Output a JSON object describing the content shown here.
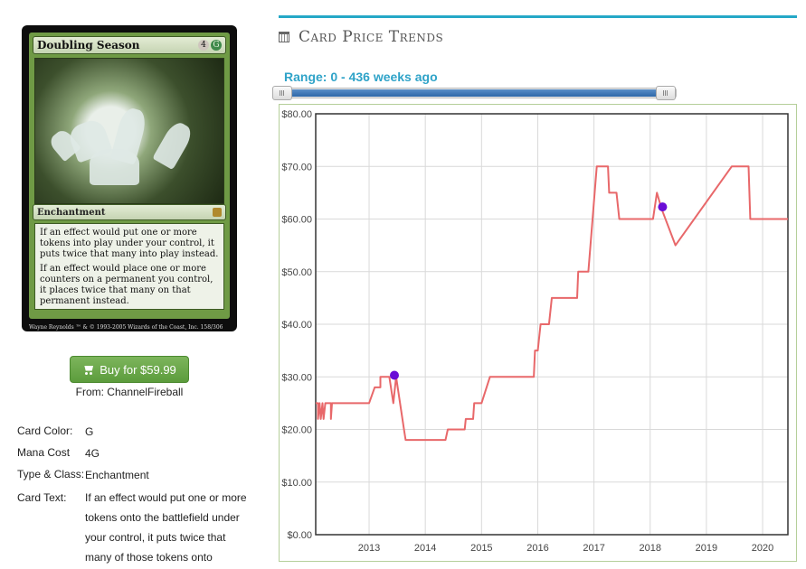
{
  "card": {
    "name": "Doubling Season",
    "mana": [
      "4",
      "G"
    ],
    "type_line": "Enchantment",
    "rules": [
      "If an effect would put one or more tokens into play under your control, it puts twice that many into play instead.",
      "If an effect would place one or more counters on a permanent you control, it places twice that many on that permanent instead."
    ],
    "artist": "Wayne Reynolds",
    "copyright": "™ & © 1993-2005 Wizards of the Coast, Inc. 158/306"
  },
  "buy": {
    "label": "Buy for $59.99",
    "from": "From: ChannelFireball"
  },
  "details": [
    {
      "label": "Card Color:",
      "value": "G"
    },
    {
      "label": "Mana Cost",
      "value": "4G"
    },
    {
      "label": "Type & Class:",
      "value": "Enchantment"
    },
    {
      "label": "Card Text:",
      "value": "If an effect would put one or more tokens onto the battlefield under your control, it puts twice that many of those tokens onto"
    }
  ],
  "section": {
    "title": "Card Price Trends"
  },
  "range": {
    "label": "Range: 0 - 436 weeks ago",
    "min_weeks": 0,
    "max_weeks": 436
  },
  "colors": {
    "line": "#e8686a",
    "marker": "#6a0dd6",
    "accent": "#24a8c7",
    "button": "#6aa84f"
  },
  "icons": {
    "cart": "shopping-cart-icon",
    "calendar": "calendar-icon"
  },
  "chart_data": {
    "type": "line",
    "title": "",
    "xlabel": "",
    "ylabel": "",
    "ylim": [
      0,
      80
    ],
    "xlim": [
      2012.05,
      2020.45
    ],
    "yticks": [
      0,
      10,
      20,
      30,
      40,
      50,
      60,
      70,
      80
    ],
    "ytick_labels": [
      "$0.00",
      "$10.00",
      "$20.00",
      "$30.00",
      "$40.00",
      "$50.00",
      "$60.00",
      "$70.00",
      "$80.00"
    ],
    "xticks": [
      2013,
      2014,
      2015,
      2016,
      2017,
      2018,
      2019,
      2020
    ],
    "xtick_labels": [
      "2013",
      "2014",
      "2015",
      "2016",
      "2017",
      "2018",
      "2019",
      "2020"
    ],
    "grid": true,
    "series": [
      {
        "values": [
          [
            2012.05,
            25
          ],
          [
            2012.09,
            25
          ],
          [
            2012.09,
            22
          ],
          [
            2012.12,
            25
          ],
          [
            2012.14,
            22
          ],
          [
            2012.17,
            25
          ],
          [
            2012.19,
            22
          ],
          [
            2012.22,
            25
          ],
          [
            2012.32,
            25
          ],
          [
            2012.32,
            22
          ],
          [
            2012.34,
            25
          ],
          [
            2013.0,
            25
          ],
          [
            2013.1,
            28
          ],
          [
            2013.2,
            28
          ],
          [
            2013.2,
            30
          ],
          [
            2013.36,
            30
          ],
          [
            2013.43,
            25
          ],
          [
            2013.48,
            30
          ],
          [
            2013.62,
            20
          ],
          [
            2013.65,
            18
          ],
          [
            2014.36,
            18
          ],
          [
            2014.4,
            20
          ],
          [
            2014.7,
            20
          ],
          [
            2014.72,
            22
          ],
          [
            2014.85,
            22
          ],
          [
            2014.87,
            25
          ],
          [
            2015.0,
            25
          ],
          [
            2015.15,
            30
          ],
          [
            2015.93,
            30
          ],
          [
            2015.95,
            35
          ],
          [
            2016.0,
            35
          ],
          [
            2016.05,
            40
          ],
          [
            2016.2,
            40
          ],
          [
            2016.25,
            45
          ],
          [
            2016.7,
            45
          ],
          [
            2016.72,
            50
          ],
          [
            2016.9,
            50
          ],
          [
            2017.05,
            70
          ],
          [
            2017.25,
            70
          ],
          [
            2017.27,
            65
          ],
          [
            2017.4,
            65
          ],
          [
            2017.45,
            60
          ],
          [
            2018.05,
            60
          ],
          [
            2018.12,
            65
          ],
          [
            2018.2,
            62
          ],
          [
            2018.45,
            55
          ],
          [
            2019.45,
            70
          ],
          [
            2019.75,
            70
          ],
          [
            2019.78,
            60
          ],
          [
            2020.45,
            60
          ]
        ]
      }
    ],
    "markers": [
      {
        "x": 2013.45,
        "y": 30.3
      },
      {
        "x": 2018.22,
        "y": 62.3
      }
    ]
  }
}
